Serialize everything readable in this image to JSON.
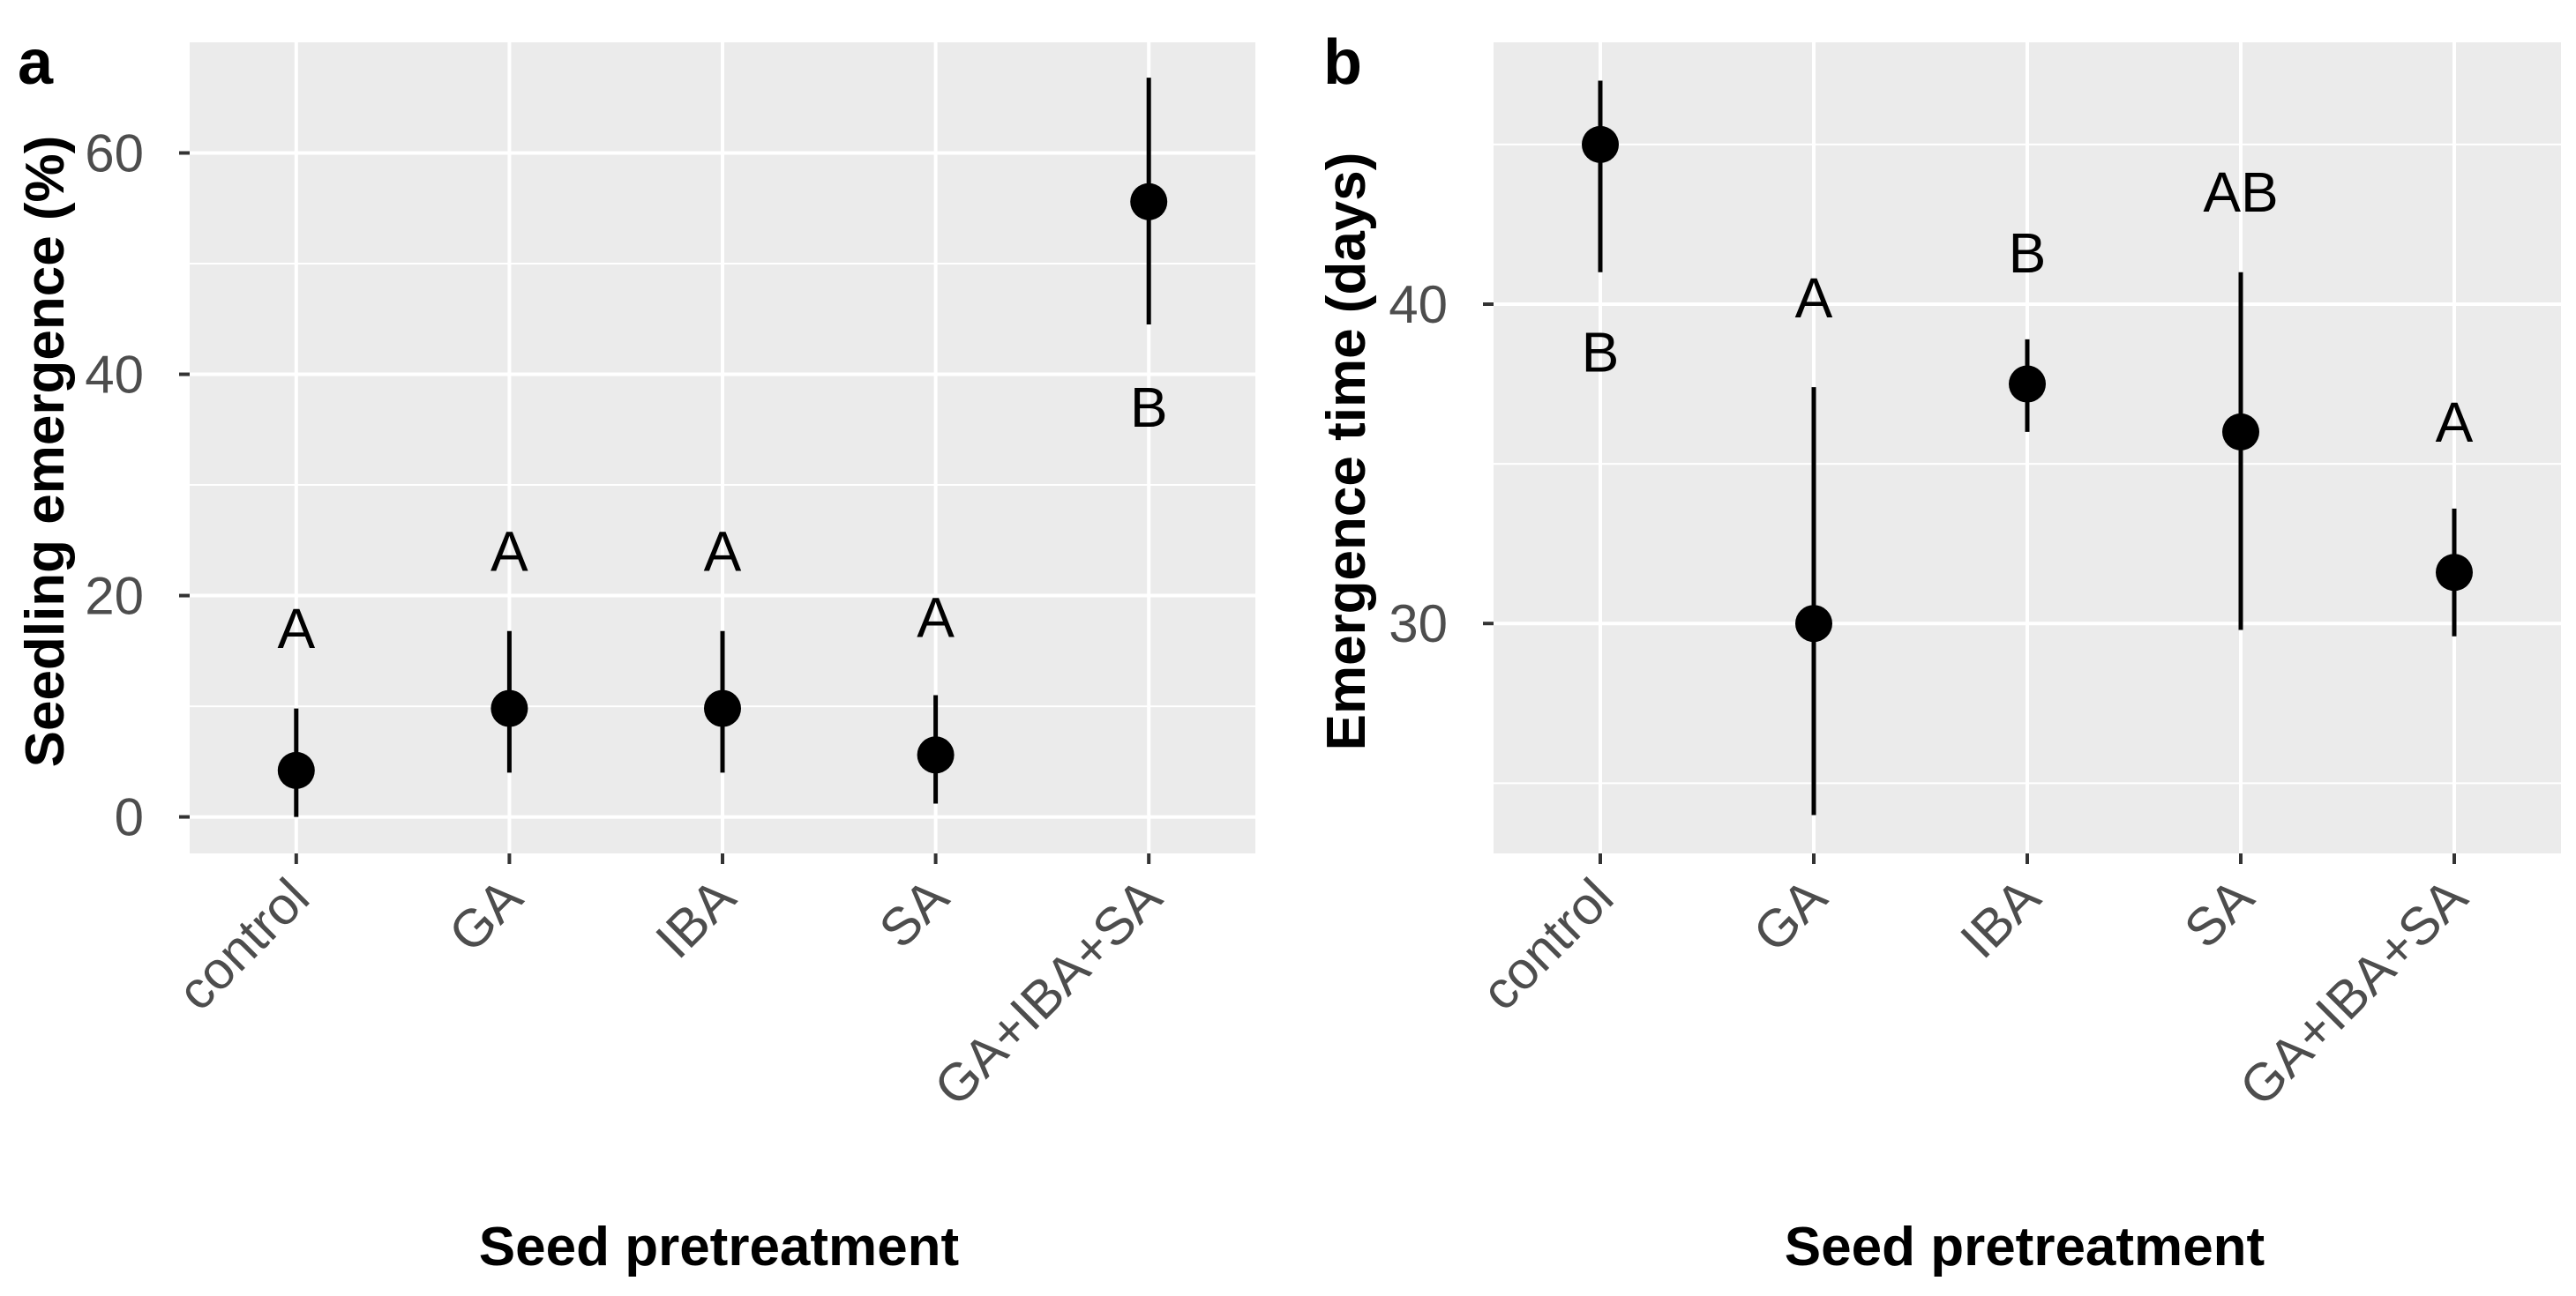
{
  "chart_data": [
    {
      "type": "scatter",
      "panel_label": "a",
      "title": "",
      "xlabel": "Seed pretreatment",
      "ylabel": "Seedling emergence (%)",
      "categories": [
        "control",
        "GA",
        "IBA",
        "SA",
        "GA+IBA+SA"
      ],
      "values": [
        4.2,
        9.8,
        9.8,
        5.6,
        55.6
      ],
      "lower": [
        0,
        4.0,
        4.0,
        1.2,
        44.5
      ],
      "upper": [
        9.8,
        16.8,
        16.8,
        11.0,
        66.8
      ],
      "letters": [
        "A",
        "A",
        "A",
        "A",
        "B"
      ],
      "letter_values": [
        17,
        24,
        24,
        18,
        37
      ],
      "ylim": [
        -3.3,
        70
      ],
      "yticks": [
        0,
        20,
        40,
        60
      ],
      "ytick_labels": [
        "0",
        "20",
        "40",
        "60"
      ],
      "yminor": [
        10,
        30,
        50
      ],
      "grid": true,
      "colors": {
        "panel_bg": "#ebebeb",
        "grid": "#ffffff",
        "point": "#000000"
      }
    },
    {
      "type": "scatter",
      "panel_label": "b",
      "title": "",
      "xlabel": "Seed pretreatment",
      "ylabel": "Emergence time (days)",
      "categories": [
        "control",
        "GA",
        "IBA",
        "SA",
        "GA+IBA+SA"
      ],
      "values": [
        45.0,
        30.0,
        37.5,
        36.0,
        31.6
      ],
      "lower": [
        41.0,
        24.0,
        36.0,
        29.8,
        29.6
      ],
      "upper": [
        47.0,
        37.4,
        38.9,
        41.0,
        33.6
      ],
      "letters": [
        "B",
        "A",
        "B",
        "AB",
        "A"
      ],
      "letter_values": [
        38.5,
        40.2,
        41.6,
        43.5,
        36.3
      ],
      "ylim": [
        22.8,
        48.2
      ],
      "yticks": [
        30,
        40
      ],
      "ytick_labels": [
        "30",
        "40"
      ],
      "yminor": [
        25,
        35,
        45
      ],
      "grid": true,
      "colors": {
        "panel_bg": "#ebebeb",
        "grid": "#ffffff",
        "point": "#000000"
      }
    }
  ]
}
